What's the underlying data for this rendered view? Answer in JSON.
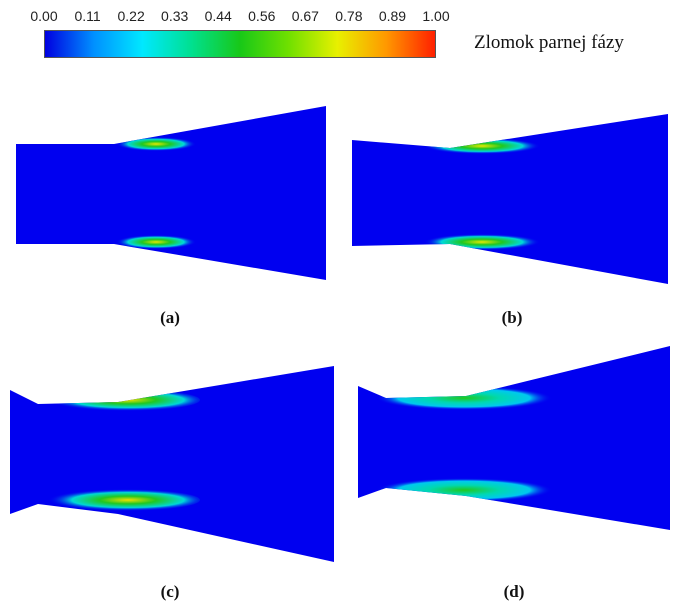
{
  "colorbar": {
    "ticks": [
      "0.00",
      "0.11",
      "0.22",
      "0.33",
      "0.44",
      "0.56",
      "0.67",
      "0.78",
      "0.89",
      "1.00"
    ],
    "title": "Zlomok parnej fázy",
    "colors": [
      "#0000e0",
      "#0090ff",
      "#00e8ff",
      "#00e090",
      "#18c818",
      "#70e000",
      "#e8f000",
      "#ff9800",
      "#ff2000"
    ]
  },
  "panels": [
    {
      "label": "(a)"
    },
    {
      "label": "(b)"
    },
    {
      "label": "(c)"
    },
    {
      "label": "(d)"
    }
  ],
  "colors": {
    "background_phase": "#0000f0",
    "vapor_low": "#00d8d8",
    "vapor_mid": "#20c820",
    "vapor_high": "#e8e800"
  }
}
